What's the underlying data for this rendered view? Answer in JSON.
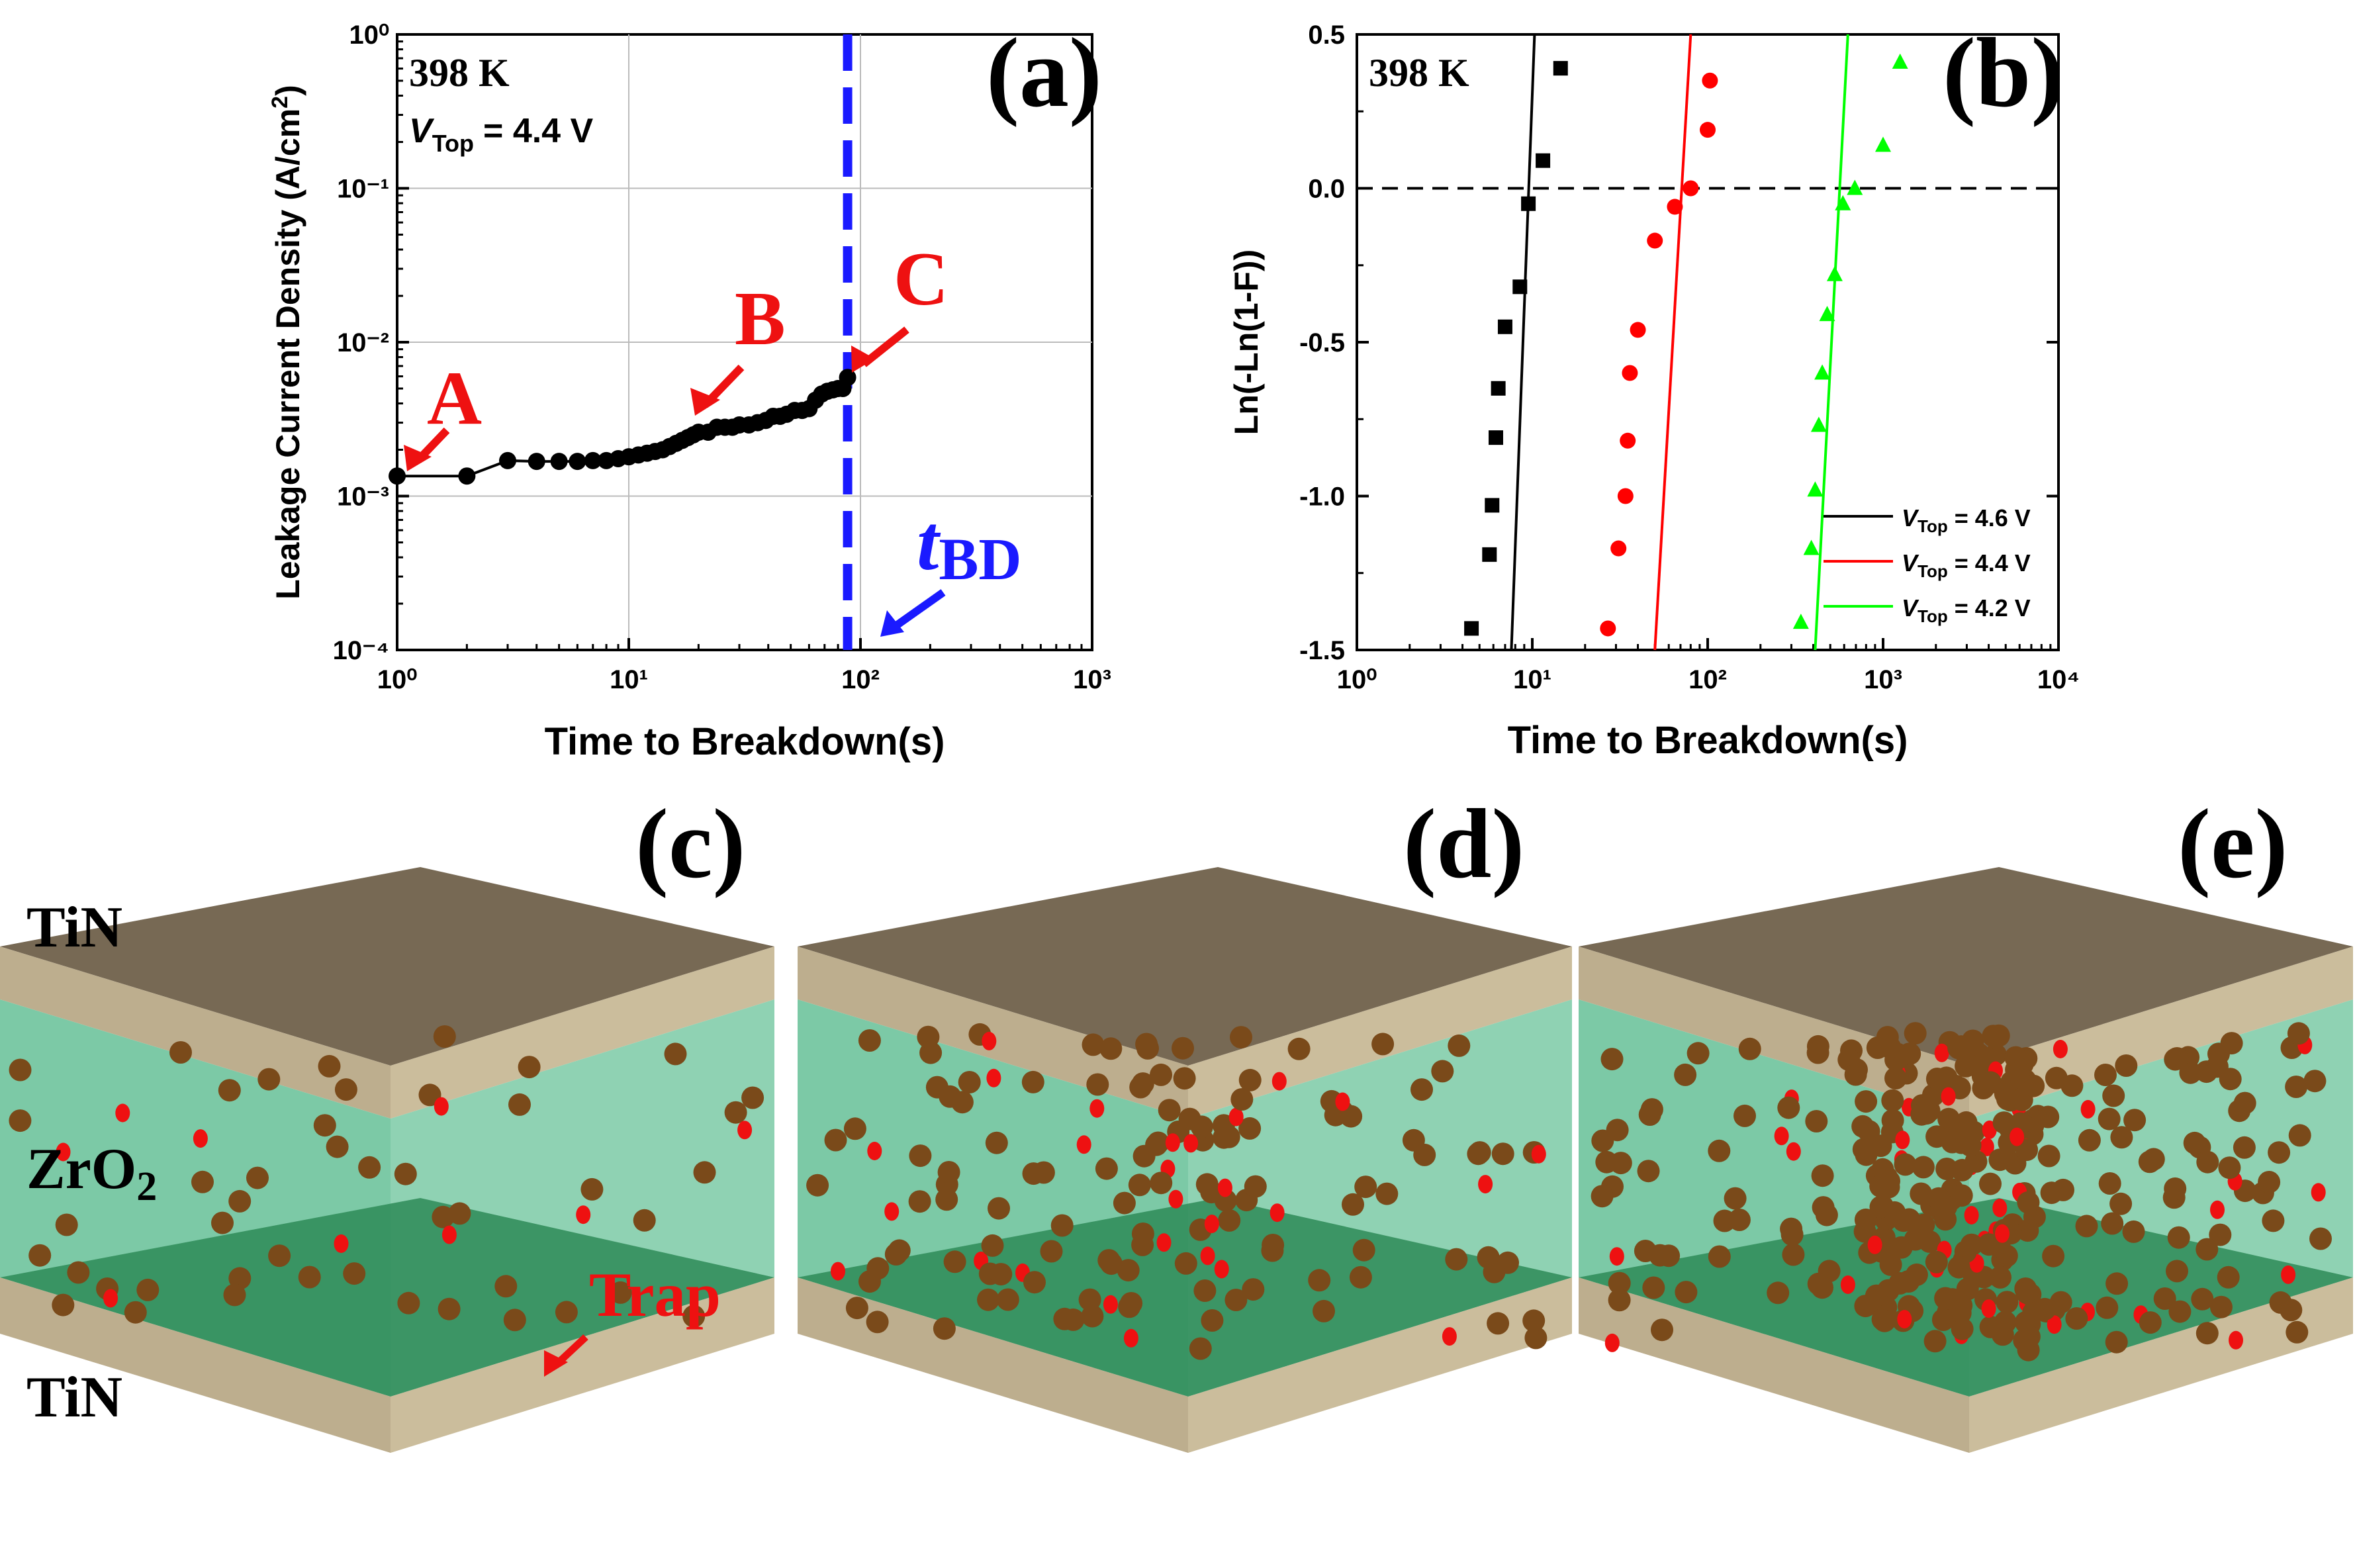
{
  "chart_data": [
    {
      "panel": "(a)",
      "type": "scatter",
      "xscale": "log",
      "yscale": "log",
      "xlim": [
        1,
        1000
      ],
      "ylim": [
        0.0001,
        1
      ],
      "xlabel": "Time to Breakdown(s)",
      "ylabel": "Leakage Current Density (A/cm2)",
      "xticks": [
        "10⁰",
        "10¹",
        "10²",
        "10³"
      ],
      "yticks": [
        "10⁻⁴",
        "10⁻³",
        "10⁻²",
        "10⁻¹",
        "10⁰"
      ],
      "annotations": {
        "temperature": "398 K",
        "vtop_label": "V",
        "vtop_sub": "Top",
        "vtop_value": "= 4.4 V",
        "A": "A",
        "B": "B",
        "C": "C",
        "tbd": "t",
        "tbd_sub": "BD"
      },
      "tbd_x": 88,
      "grid": true,
      "series": [
        {
          "color": "#000000",
          "x": [
            1,
            2,
            3,
            4,
            5,
            6,
            7,
            8,
            9,
            10,
            11,
            12,
            13,
            14,
            15,
            16,
            17,
            18,
            19,
            20,
            22,
            24,
            26,
            28,
            30,
            33,
            36,
            39,
            42,
            45,
            48,
            52,
            56,
            60,
            64,
            68,
            72,
            76,
            80,
            84,
            88
          ],
          "y": [
            0.00135,
            0.00135,
            0.0017,
            0.00168,
            0.00168,
            0.00168,
            0.0017,
            0.0017,
            0.00175,
            0.0018,
            0.00185,
            0.0019,
            0.00195,
            0.002,
            0.0021,
            0.0022,
            0.0023,
            0.0024,
            0.0025,
            0.0026,
            0.0026,
            0.0028,
            0.0028,
            0.0028,
            0.0029,
            0.0029,
            0.003,
            0.0031,
            0.0033,
            0.0033,
            0.0034,
            0.0036,
            0.0036,
            0.0037,
            0.0042,
            0.0046,
            0.0048,
            0.0049,
            0.005,
            0.005,
            0.0059
          ]
        }
      ]
    },
    {
      "panel": "(b)",
      "type": "scatter",
      "xscale": "log",
      "xlim": [
        1,
        10000
      ],
      "ylim": [
        -1.5,
        0.5
      ],
      "xlabel": "Time to Breakdown(s)",
      "ylabel": "Ln(-Ln(1-F))",
      "xticks": [
        "10⁰",
        "10¹",
        "10²",
        "10³",
        "10⁴"
      ],
      "yticks": [
        "-1.5",
        "-1.0",
        "-0.5",
        "0.0",
        "0.5"
      ],
      "annotations": {
        "temperature": "398 K"
      },
      "series": [
        {
          "name": "4.6 V",
          "legend_v": "V",
          "legend_sub": "Top",
          "legend_val": "= 4.6 V",
          "color": "#000000",
          "marker": "square",
          "x": [
            4.5,
            5.7,
            5.9,
            6.2,
            6.4,
            7.0,
            8.5,
            9.5,
            11.5,
            14.5
          ],
          "y": [
            -1.43,
            -1.19,
            -1.03,
            -0.81,
            -0.65,
            -0.45,
            -0.32,
            -0.05,
            0.09,
            0.39
          ],
          "fit": [
            [
              7.6,
              -1.5
            ],
            [
              10.3,
              0.5
            ]
          ]
        },
        {
          "name": "4.4 V",
          "legend_v": "V",
          "legend_sub": "Top",
          "legend_val": "= 4.4 V",
          "color": "#ff0000",
          "marker": "circle",
          "x": [
            27,
            31,
            34,
            35,
            36,
            40,
            50,
            65,
            80,
            100,
            103
          ],
          "y": [
            -1.43,
            -1.17,
            -1.0,
            -0.82,
            -0.6,
            -0.46,
            -0.17,
            -0.06,
            0.0,
            0.19,
            0.35
          ],
          "fit": [
            [
              50,
              -1.5
            ],
            [
              80,
              0.5
            ]
          ]
        },
        {
          "name": "4.2 V",
          "legend_v": "V",
          "legend_sub": "Top",
          "legend_val": "= 4.2 V",
          "color": "#00ff00",
          "marker": "triangle",
          "x": [
            340,
            390,
            410,
            430,
            450,
            480,
            530,
            590,
            690,
            1000,
            1250
          ],
          "y": [
            -1.41,
            -1.17,
            -0.98,
            -0.77,
            -0.6,
            -0.41,
            -0.28,
            -0.05,
            0.0,
            0.14,
            0.41
          ],
          "fit": [
            [
              410,
              -1.5
            ],
            [
              630,
              0.5
            ]
          ]
        }
      ],
      "hline": 0
    }
  ],
  "panels": {
    "c": "(c)",
    "d": "(d)",
    "e": "(e)",
    "top_electrode": "TiN",
    "oxide": "ZrO",
    "oxide_sub": "2",
    "bottom_electrode": "TiN",
    "trap": "Trap"
  },
  "colors": {
    "tin_top": "#776954",
    "tin_side": "#bdae8e",
    "oxide": "#7cc9a6",
    "floor": "#2e8b57",
    "trap_brown": "#7a4a1a",
    "trap_red": "#ee1111"
  }
}
